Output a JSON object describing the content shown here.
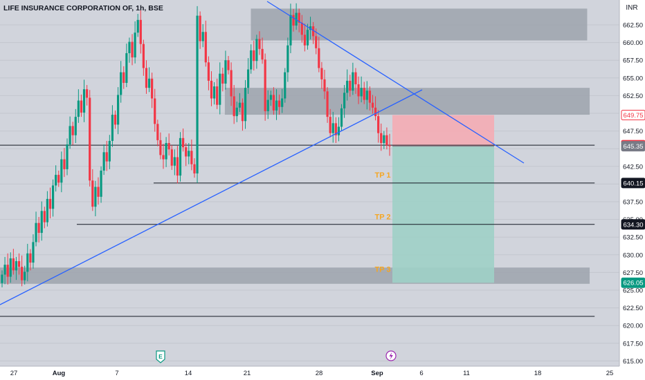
{
  "header": {
    "symbol_title": "LIFE INSURANCE CORPORATION OF, 1h, BSE",
    "currency": "INR"
  },
  "colors": {
    "background": "#d1d4dc",
    "up": "#089981",
    "down": "#f23645",
    "trendline": "#2962ff",
    "zone": "#9ea3ad",
    "stop_zone": "#f7a9b1",
    "target_zone": "#9fd0c6",
    "tp_text": "#f5a623",
    "price_line": "#131722"
  },
  "chart_data": {
    "type": "candlestick",
    "title": "LIFE INSURANCE CORPORATION OF, 1h, BSE",
    "ylim": [
      615.0,
      665.0
    ],
    "y_ticks": [
      615.0,
      617.5,
      620.0,
      622.5,
      625.0,
      627.5,
      630.0,
      632.5,
      635.0,
      637.5,
      640.0,
      642.5,
      645.0,
      647.5,
      650.0,
      652.5,
      655.0,
      657.5,
      660.0,
      662.5
    ],
    "x_ticks": [
      {
        "label": "27",
        "bold": false
      },
      {
        "label": "Aug",
        "bold": true
      },
      {
        "label": "7",
        "bold": false
      },
      {
        "label": "14",
        "bold": false
      },
      {
        "label": "21",
        "bold": false
      },
      {
        "label": "28",
        "bold": false
      },
      {
        "label": "Sep",
        "bold": true
      },
      {
        "label": "6",
        "bold": false
      },
      {
        "label": "11",
        "bold": false
      },
      {
        "label": "18",
        "bold": false
      },
      {
        "label": "25",
        "bold": false
      }
    ],
    "candles_close": [
      627.2,
      628.6,
      626.9,
      629.5,
      627.8,
      629.1,
      628.3,
      626.4,
      627.6,
      630.2,
      628.9,
      631.8,
      634.5,
      633.1,
      636.2,
      634.6,
      637.9,
      636.5,
      639.8,
      641.3,
      640.2,
      643.5,
      642.1,
      645.6,
      648.2,
      646.9,
      649.5,
      651.8,
      650.1,
      653.4,
      652.2,
      640.5,
      636.8,
      639.6,
      638.2,
      641.9,
      644.5,
      643.2,
      646.1,
      649.8,
      648.4,
      652.6,
      655.8,
      654.3,
      658.5,
      660.1,
      657.9,
      661.4,
      663.2,
      659.8,
      656.4,
      653.6,
      654.9,
      652.1,
      648.5,
      646.2,
      644.1,
      643.5,
      645.8,
      644.9,
      642.6,
      643.8,
      641.2,
      646.5,
      645.2,
      643.9,
      644.7,
      642.8,
      641.5,
      663.8,
      660.2,
      661.5,
      657.2,
      654.6,
      652.1,
      653.8,
      651.2,
      655.6,
      654.2,
      657.5,
      656.1,
      652.4,
      649.6,
      650.8,
      651.5,
      648.9,
      653.6,
      656.2,
      658.9,
      657.4,
      660.5,
      659.1,
      657.6,
      650.3,
      651.9,
      652.6,
      650.4,
      651.8,
      650.9,
      652.1,
      655.8,
      659.6,
      663.9,
      662.4,
      664.2,
      662.8,
      661.1,
      659.6,
      661.8,
      662.3,
      660.9,
      659.2,
      656.4,
      654.8,
      653.1,
      649.5,
      647.2,
      648.6,
      646.9,
      648.1,
      650.7,
      652.9,
      654.6,
      653.2,
      655.8,
      654.1,
      652.4,
      653.6,
      651.9,
      653.2,
      651.5,
      650.8,
      649.6,
      647.2,
      645.8,
      646.9,
      645.5,
      645.35
    ]
  },
  "price_axis": {
    "zones": [
      {
        "low": 660.3,
        "high": 664.8,
        "from": 0.405,
        "to": 0.948
      },
      {
        "low": 649.8,
        "high": 653.6,
        "from": 0.363,
        "to": 0.952
      },
      {
        "low": 625.9,
        "high": 628.2,
        "from": 0.0,
        "to": 0.952
      }
    ],
    "horizontal_levels": [
      {
        "value": 645.5,
        "from": 0.0,
        "to": 0.96
      },
      {
        "value": 640.15,
        "from": 0.248,
        "to": 0.96
      },
      {
        "value": 634.3,
        "from": 0.124,
        "to": 0.96
      },
      {
        "value": 621.3,
        "from": 0.0,
        "to": 0.96
      }
    ],
    "price_tags": [
      {
        "value": "649.75",
        "price": 649.75,
        "style": "stop"
      },
      {
        "value": "645.50",
        "price": 645.5,
        "style": "last"
      },
      {
        "value": "645.35",
        "price": 645.35,
        "style": "grey"
      },
      {
        "value": "640.15",
        "price": 640.15,
        "style": "dark"
      },
      {
        "value": "634.30",
        "price": 634.3,
        "style": "dark"
      },
      {
        "value": "626.05",
        "price": 626.05,
        "style": "target"
      }
    ]
  },
  "position": {
    "entry": 645.35,
    "stop": 649.75,
    "target": 626.05,
    "targets": [
      {
        "label": "TP 1",
        "price": 641.3
      },
      {
        "label": "TP 2",
        "price": 635.4
      },
      {
        "label": "TP 3",
        "price": 628.0
      }
    ]
  },
  "toolbar": {
    "earnings_icon": "E",
    "dividend_icon": "lightning-icon"
  }
}
